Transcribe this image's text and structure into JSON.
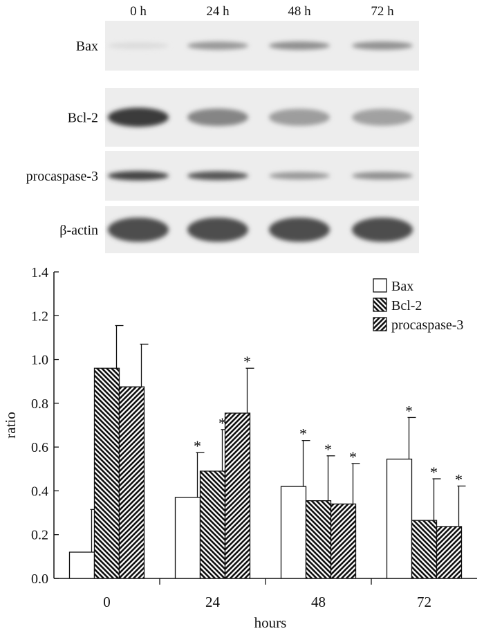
{
  "blot": {
    "lanes": [
      "0 h",
      "24 h",
      "48 h",
      "72 h"
    ],
    "rows": [
      {
        "label": "Bax",
        "intensity": [
          0.08,
          0.45,
          0.5,
          0.48
        ]
      },
      {
        "label": "Bcl-2",
        "intensity": [
          0.95,
          0.55,
          0.42,
          0.4
        ]
      },
      {
        "label": "procaspase-3",
        "intensity": [
          0.9,
          0.8,
          0.45,
          0.5
        ]
      },
      {
        "label": "β-actin",
        "intensity": [
          0.85,
          0.85,
          0.85,
          0.85
        ]
      }
    ]
  },
  "chart_data": {
    "type": "bar",
    "categories": [
      "0",
      "24",
      "48",
      "72"
    ],
    "xlabel": "hours",
    "ylabel": "ratio",
    "ylim": [
      0,
      1.4
    ],
    "yticks": [
      "0.0",
      "0.2",
      "0.4",
      "0.6",
      "0.8",
      "1.0",
      "1.2",
      "1.4"
    ],
    "legend_position": "top-right",
    "significance_marker": "*",
    "series": [
      {
        "name": "Bax",
        "fill": "open",
        "values": [
          0.12,
          0.37,
          0.42,
          0.545
        ],
        "errors": [
          0.195,
          0.205,
          0.21,
          0.19
        ],
        "significant": [
          false,
          true,
          true,
          true
        ]
      },
      {
        "name": "Bcl-2",
        "fill": "hatch-backslash",
        "values": [
          0.96,
          0.49,
          0.355,
          0.265
        ],
        "errors": [
          0.195,
          0.19,
          0.205,
          0.19
        ],
        "significant": [
          false,
          true,
          true,
          true
        ]
      },
      {
        "name": "procaspase-3",
        "fill": "hatch-slash",
        "values": [
          0.875,
          0.755,
          0.34,
          0.237
        ],
        "errors": [
          0.195,
          0.205,
          0.185,
          0.185
        ],
        "significant": [
          false,
          true,
          true,
          true
        ]
      }
    ]
  }
}
